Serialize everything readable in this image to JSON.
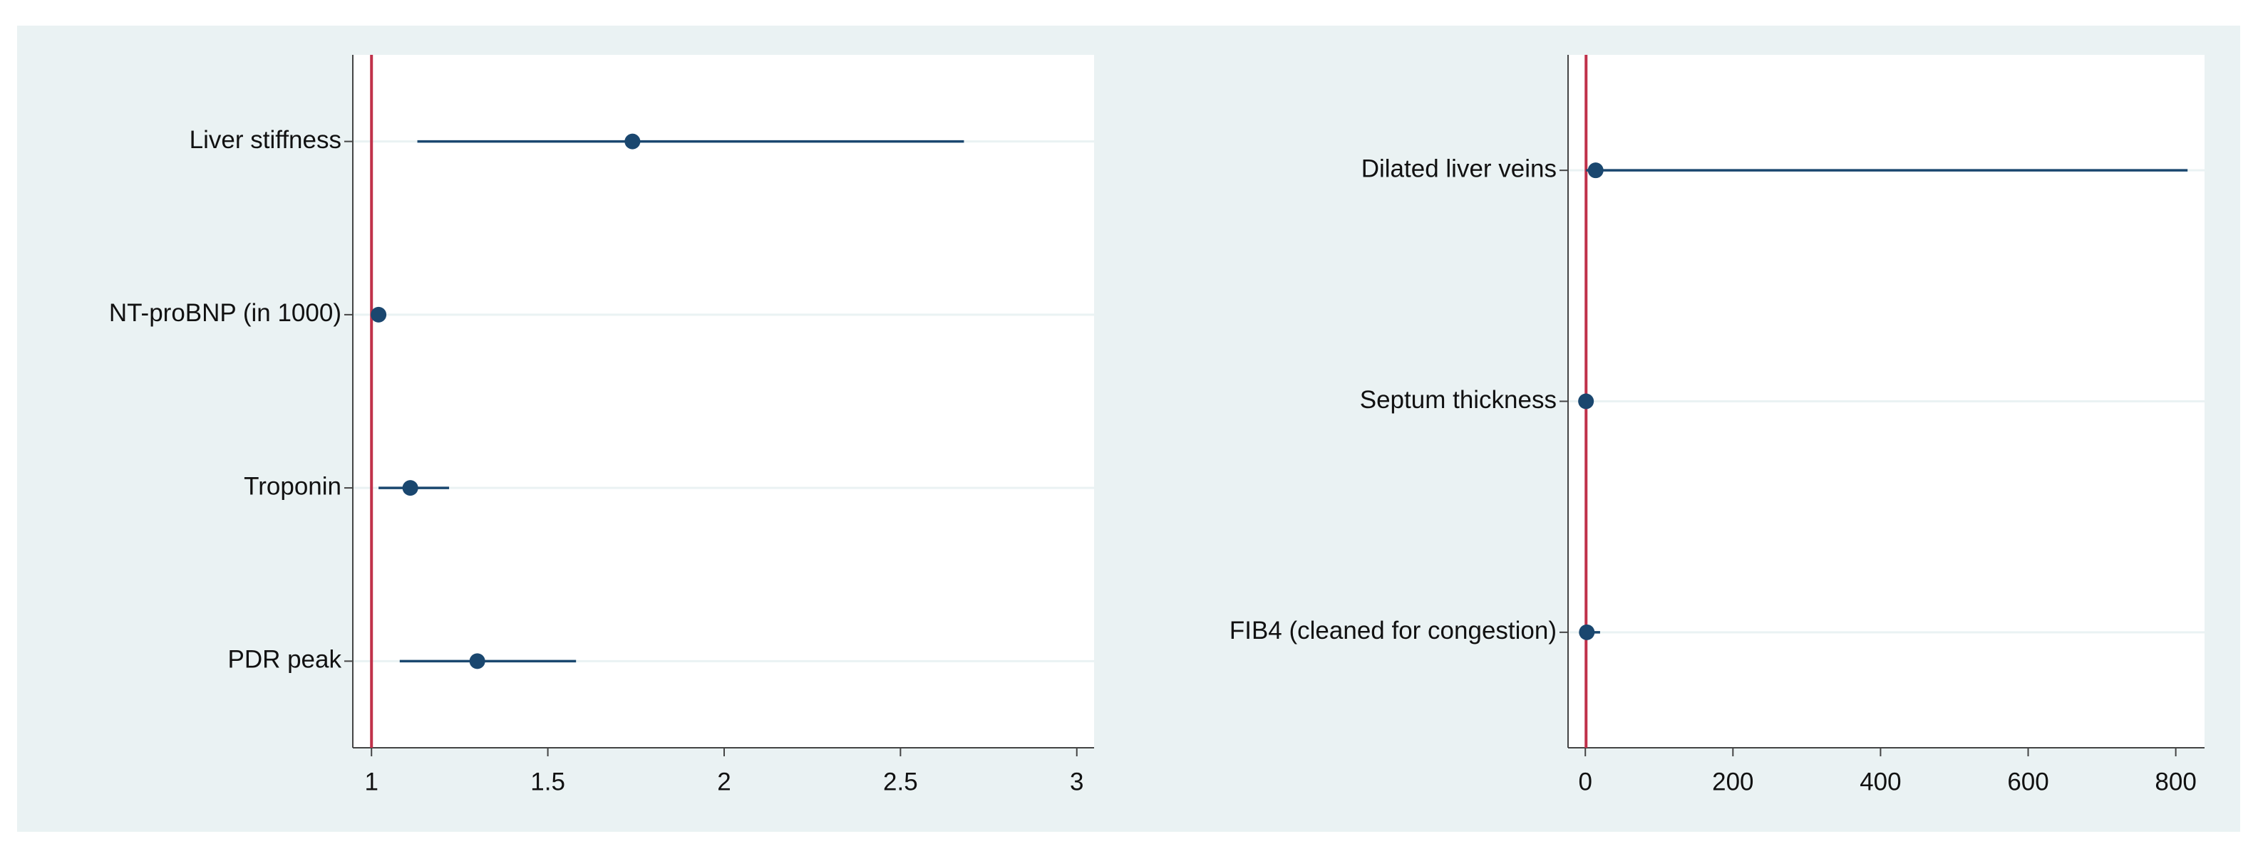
{
  "chart_data": [
    {
      "type": "forest",
      "categories": [
        "Liver stiffness",
        "NT-proBNP (in 1000)",
        "Troponin",
        "PDR peak"
      ],
      "values": [
        1.74,
        1.02,
        1.11,
        1.3
      ],
      "ci_lower": [
        1.13,
        1.01,
        1.02,
        1.08
      ],
      "ci_upper": [
        2.68,
        1.04,
        1.22,
        1.58
      ],
      "xlim": [
        0.947,
        3.049
      ],
      "xticks": [
        1,
        1.5,
        2,
        2.5,
        3
      ],
      "refline": 1,
      "color": "#1a476f",
      "refline_color": "#c0314a",
      "grid": true
    },
    {
      "type": "forest",
      "categories": [
        "Dilated liver veins",
        "Septum thickness",
        "FIB4 (cleaned for congestion)"
      ],
      "values": [
        14,
        0.9,
        2
      ],
      "ci_lower": [
        1,
        0.5,
        0.5
      ],
      "ci_upper": [
        816,
        1.5,
        20
      ],
      "xlim": [
        -23.4,
        839
      ],
      "xticks": [
        0,
        200,
        400,
        600,
        800
      ],
      "refline": 1,
      "color": "#1a476f",
      "refline_color": "#c0314a",
      "grid": true
    }
  ]
}
